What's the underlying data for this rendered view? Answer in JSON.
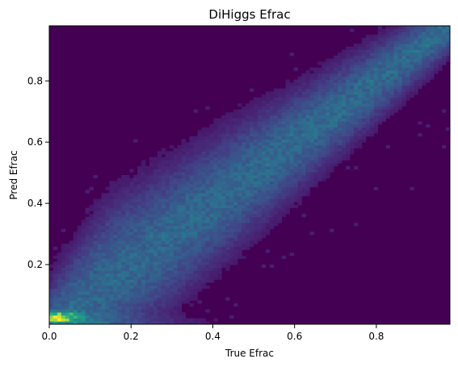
{
  "chart_data": {
    "type": "heatmap",
    "title": "DiHiggs Efrac",
    "xlabel": "True Efrac",
    "ylabel": "Pred Efrac",
    "xlim": [
      0,
      0.98
    ],
    "ylim": [
      0.005,
      0.98
    ],
    "x_ticks": [
      0,
      0.2,
      0.4,
      0.6,
      0.8
    ],
    "x_tick_labels": [
      "0.0",
      "0.2",
      "0.4",
      "0.6",
      "0.8"
    ],
    "y_ticks": [
      0.2,
      0.4,
      0.6,
      0.8
    ],
    "y_tick_labels": [
      "0.2",
      "0.4",
      "0.6",
      "0.8"
    ],
    "colormap": "viridis",
    "background_color": "#440154",
    "bins": 100,
    "density_features": [
      {
        "name": "diagonal ridge",
        "from": [
          0.0,
          0.0
        ],
        "to": [
          0.98,
          0.98
        ]
      },
      {
        "name": "low-value hotspot",
        "x": [
          0.0,
          0.12
        ],
        "y": [
          0.01,
          0.05
        ],
        "level": "maximum"
      },
      {
        "name": "horizontal band",
        "x": [
          0.0,
          0.5
        ],
        "y": [
          0.0,
          0.03
        ]
      }
    ]
  }
}
